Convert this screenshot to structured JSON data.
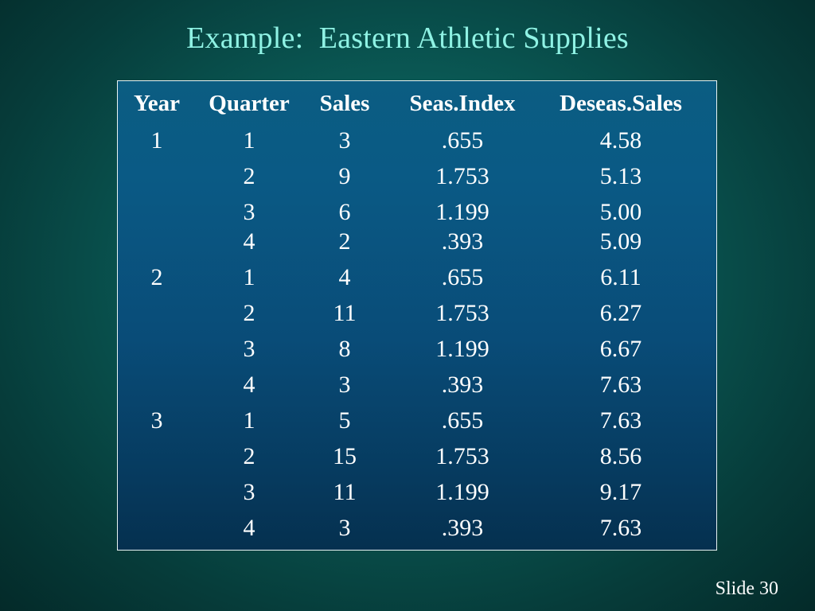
{
  "slide": {
    "title": "Example:  Eastern Athletic Supplies",
    "number_label": "Slide 30"
  },
  "table": {
    "headers": [
      "Year",
      "Quarter",
      "Sales",
      "Seas.Index",
      "Deseas.Sales"
    ],
    "rows": [
      [
        "1",
        "1",
        "3",
        ".655",
        "4.58"
      ],
      [
        "",
        "2",
        "9",
        "1.753",
        "5.13"
      ],
      [
        "",
        "3",
        "6",
        "1.199",
        "5.00"
      ],
      [
        "",
        "4",
        "2",
        ".393",
        "5.09"
      ],
      [
        "2",
        "1",
        "4",
        ".655",
        "6.11"
      ],
      [
        "",
        "2",
        "11",
        "1.753",
        "6.27"
      ],
      [
        "",
        "3",
        "8",
        "1.199",
        "6.67"
      ],
      [
        "",
        "4",
        "3",
        ".393",
        "7.63"
      ],
      [
        "3",
        "1",
        "5",
        ".655",
        "7.63"
      ],
      [
        "",
        "2",
        "15",
        "1.753",
        "8.56"
      ],
      [
        "",
        "3",
        "11",
        "1.199",
        "9.17"
      ],
      [
        "",
        "4",
        "3",
        ".393",
        "7.63"
      ]
    ]
  },
  "colors": {
    "title": "#8ff2e4",
    "table_fill": "#0a5a85",
    "background": "#0a5955",
    "text": "#ffffff"
  }
}
